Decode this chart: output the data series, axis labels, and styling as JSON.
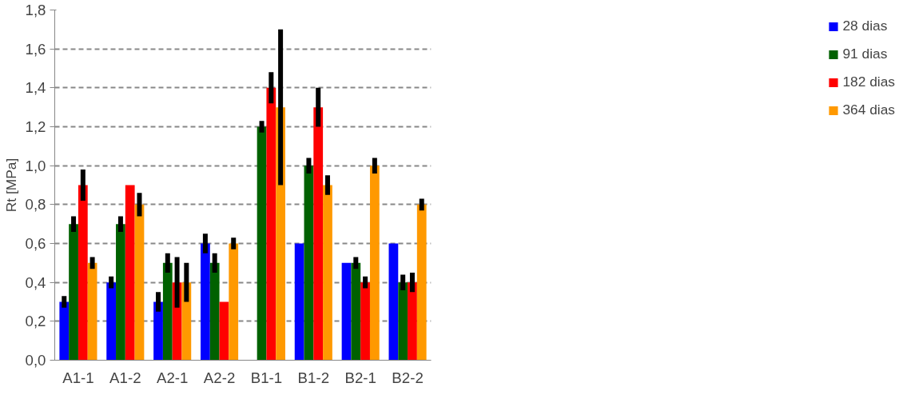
{
  "chart_data": {
    "type": "bar",
    "ylabel": "Rt [MPa]",
    "categories": [
      "A1-1",
      "A1-2",
      "A2-1",
      "A2-2",
      "B1-1",
      "B1-2",
      "B2-1",
      "B2-2"
    ],
    "series": [
      {
        "name": "28 dias",
        "color": "#0000ff",
        "values": [
          0.3,
          0.4,
          0.3,
          0.6,
          null,
          0.6,
          0.5,
          0.6
        ],
        "errors": [
          0.03,
          0.03,
          0.05,
          0.05,
          null,
          null,
          null,
          null
        ]
      },
      {
        "name": "91 dias",
        "color": "#006100",
        "values": [
          0.7,
          0.7,
          0.5,
          0.5,
          1.2,
          1.0,
          0.5,
          0.4
        ],
        "errors": [
          0.04,
          0.04,
          0.05,
          0.05,
          0.03,
          0.04,
          0.03,
          0.04
        ]
      },
      {
        "name": "182 dias",
        "color": "#ff0000",
        "values": [
          0.9,
          0.9,
          0.4,
          0.3,
          1.4,
          1.3,
          0.4,
          0.4
        ],
        "errors": [
          0.08,
          null,
          0.13,
          null,
          0.08,
          0.1,
          0.03,
          0.05
        ]
      },
      {
        "name": "364 dias",
        "color": "#ff9900",
        "values": [
          0.5,
          0.8,
          0.4,
          0.6,
          1.3,
          0.9,
          1.0,
          0.8
        ],
        "errors": [
          0.03,
          0.06,
          0.1,
          0.03,
          0.4,
          0.05,
          0.04,
          0.03
        ]
      }
    ],
    "ylim": [
      0,
      1.8
    ],
    "yticks": [
      {
        "value": 0,
        "label": "0,0"
      },
      {
        "value": 0.2,
        "label": "0,2"
      },
      {
        "value": 0.4,
        "label": "0,4"
      },
      {
        "value": 0.6,
        "label": "0,6"
      },
      {
        "value": 0.8,
        "label": "0,8"
      },
      {
        "value": 1.0,
        "label": "1,0"
      },
      {
        "value": 1.2,
        "label": "1,2"
      },
      {
        "value": 1.4,
        "label": "1,4"
      },
      {
        "value": 1.6,
        "label": "1,6"
      },
      {
        "value": 1.8,
        "label": "1,8"
      }
    ],
    "grid": "y",
    "legend": "right"
  }
}
